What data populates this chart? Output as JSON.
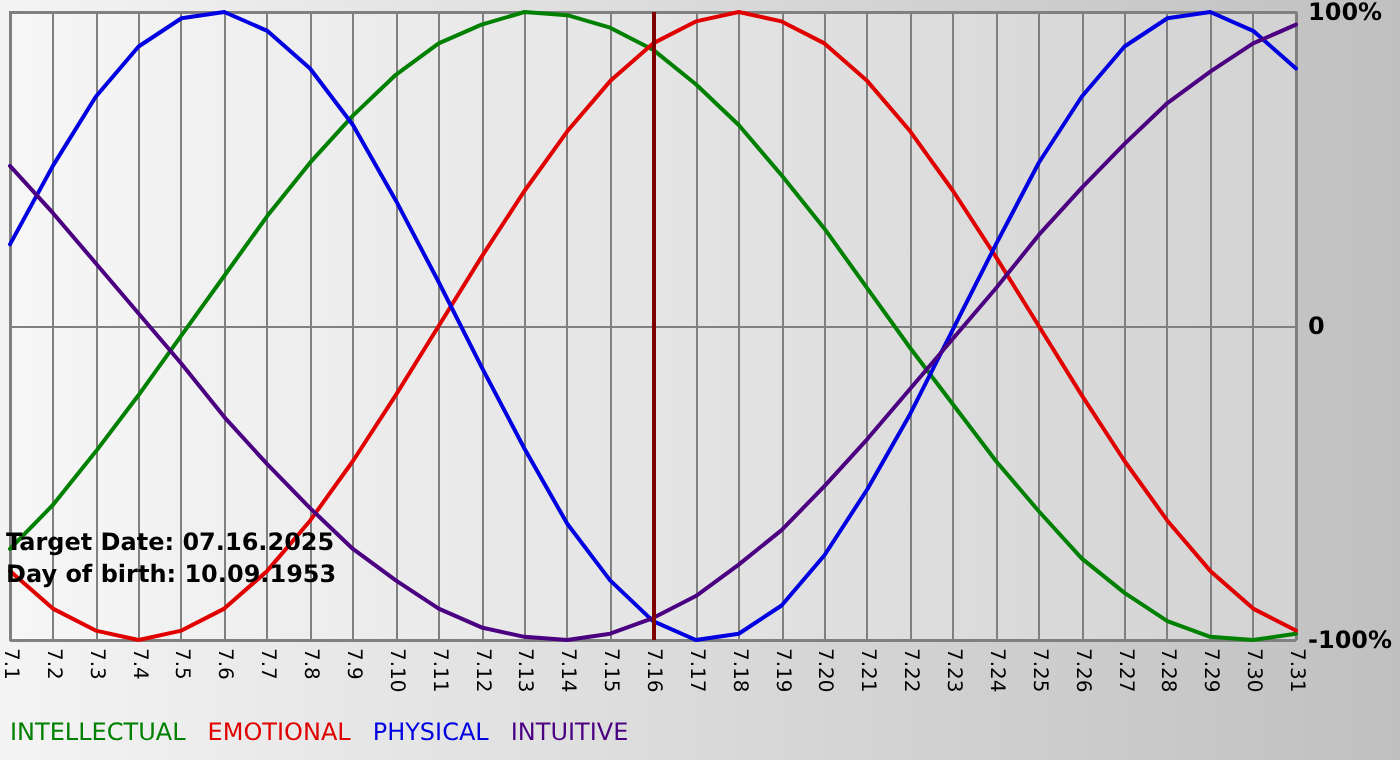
{
  "chart_data": {
    "type": "line",
    "categories": [
      "7.1",
      "7.2",
      "7.3",
      "7.4",
      "7.5",
      "7.6",
      "7.7",
      "7.8",
      "7.9",
      "7.10",
      "7.11",
      "7.12",
      "7.13",
      "7.14",
      "7.15",
      "7.16",
      "7.17",
      "7.18",
      "7.19",
      "7.20",
      "7.21",
      "7.22",
      "7.23",
      "7.24",
      "7.25",
      "7.26",
      "7.27",
      "7.28",
      "7.29",
      "7.30",
      "7.31"
    ],
    "series": [
      {
        "name": "INTELLECTUAL",
        "color": "#008000",
        "values": [
          -71,
          -57,
          -40,
          -22,
          -3,
          16,
          35,
          52,
          67,
          80,
          90,
          96,
          100,
          99,
          95,
          88,
          77,
          64,
          48,
          31,
          12,
          -7,
          -25,
          -43,
          -59,
          -74,
          -85,
          -94,
          -99,
          -100,
          -98
        ]
      },
      {
        "name": "EMOTIONAL",
        "color": "#e00000",
        "values": [
          -78,
          -90,
          -97,
          -100,
          -97,
          -90,
          -78,
          -62,
          -43,
          -22,
          0,
          22,
          43,
          62,
          78,
          90,
          97,
          100,
          97,
          90,
          78,
          62,
          43,
          22,
          0,
          -22,
          -43,
          -62,
          -78,
          -90,
          -97
        ]
      },
      {
        "name": "PHYSICAL",
        "color": "#0000e0",
        "values": [
          26,
          51,
          73,
          89,
          98,
          100,
          94,
          82,
          64,
          40,
          14,
          -13,
          -39,
          -63,
          -81,
          -94,
          -100,
          -98,
          -89,
          -73,
          -52,
          -28,
          -1,
          26,
          52,
          73,
          89,
          98,
          100,
          94,
          82
        ]
      },
      {
        "name": "INTUITIVE",
        "color": "#4b0082",
        "values": [
          51,
          36,
          20,
          4,
          -12,
          -29,
          -44,
          -58,
          -71,
          -81,
          -90,
          -96,
          -99,
          -100,
          -98,
          -93,
          -86,
          -76,
          -65,
          -51,
          -36,
          -20,
          -4,
          12,
          29,
          44,
          58,
          71,
          81,
          90,
          96
        ]
      }
    ],
    "ylim": [
      -100,
      100
    ],
    "yticks": [
      {
        "value": -100,
        "label": "-100%"
      },
      {
        "value": 0,
        "label": "0"
      },
      {
        "value": 100,
        "label": "100%"
      }
    ],
    "ref_lines": [
      {
        "axis": "x",
        "value": "7.16",
        "color": "#800000"
      }
    ],
    "annotations": [
      "Target Date: 07.16.2025",
      "Day of birth: 10.09.1953"
    ],
    "grid": true,
    "legend": "bottom left",
    "marker": "none",
    "line_style": "solid"
  }
}
